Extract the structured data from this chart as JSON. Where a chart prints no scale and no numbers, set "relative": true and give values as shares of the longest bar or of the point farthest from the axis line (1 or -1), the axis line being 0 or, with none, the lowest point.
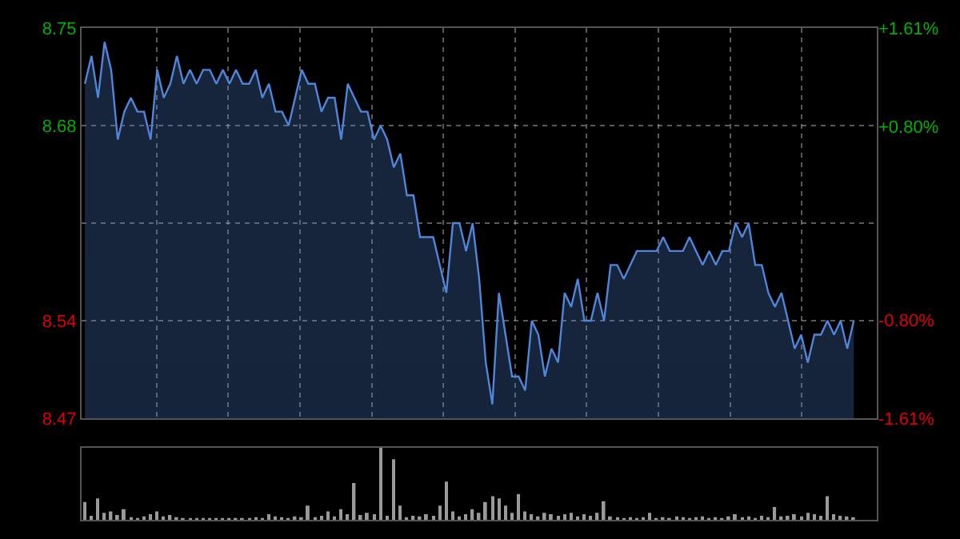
{
  "chart_data": [
    {
      "type": "area",
      "categories": [
        null,
        null,
        null,
        null,
        null,
        null,
        null,
        null,
        null,
        null,
        null,
        null,
        null,
        null,
        null,
        null,
        null,
        null,
        null,
        null,
        null,
        null,
        null,
        null,
        null,
        null,
        null,
        null,
        null,
        null,
        null,
        null,
        null,
        null,
        null,
        null,
        null,
        null,
        null,
        null,
        null,
        null,
        null,
        null,
        null,
        null,
        null,
        null,
        null,
        null,
        null,
        null,
        null,
        null,
        null,
        null,
        null,
        null,
        null,
        null,
        null,
        null,
        null,
        null,
        null,
        null,
        null,
        null,
        null,
        null,
        null,
        null,
        null,
        null,
        null,
        null,
        null,
        null,
        null,
        null,
        null,
        null,
        null,
        null,
        null,
        null,
        null,
        null,
        null,
        null,
        null,
        null,
        null,
        null,
        null,
        null,
        null,
        null,
        null,
        null,
        null,
        null,
        null,
        null,
        null,
        null,
        null,
        null,
        null,
        null,
        null,
        null,
        null,
        null,
        null,
        null,
        null,
        null,
        null,
        null,
        null
      ],
      "series": [
        {
          "color": "#4f86d9",
          "values": [
            8.71,
            8.73,
            8.7,
            8.74,
            8.72,
            8.67,
            8.69,
            8.7,
            8.69,
            8.69,
            8.67,
            8.72,
            8.7,
            8.71,
            8.73,
            8.71,
            8.72,
            8.71,
            8.72,
            8.72,
            8.71,
            8.72,
            8.71,
            8.72,
            8.71,
            8.71,
            8.72,
            8.7,
            8.71,
            8.69,
            8.69,
            8.68,
            8.7,
            8.72,
            8.71,
            8.71,
            8.69,
            8.7,
            8.7,
            8.67,
            8.71,
            8.7,
            8.69,
            8.69,
            8.67,
            8.68,
            8.67,
            8.65,
            8.66,
            8.63,
            8.63,
            8.6,
            8.6,
            8.6,
            8.58,
            8.56,
            8.61,
            8.61,
            8.59,
            8.61,
            8.57,
            8.51,
            8.48,
            8.56,
            8.53,
            8.5,
            8.5,
            8.49,
            8.54,
            8.53,
            8.5,
            8.52,
            8.51,
            8.56,
            8.55,
            8.57,
            8.54,
            8.54,
            8.56,
            8.54,
            8.58,
            8.58,
            8.57,
            8.58,
            8.59,
            8.59,
            8.59,
            8.59,
            8.6,
            8.59,
            8.59,
            8.59,
            8.6,
            8.59,
            8.58,
            8.59,
            8.58,
            8.59,
            8.59,
            8.61,
            8.6,
            8.61,
            8.58,
            8.58,
            8.56,
            8.55,
            8.56,
            8.54,
            8.52,
            8.53,
            8.51,
            8.53,
            8.53,
            8.54,
            8.53,
            8.54,
            8.52,
            8.54,
            null,
            null,
            null
          ]
        }
      ],
      "ylim": [
        8.47,
        8.75
      ],
      "yticks": [
        8.47,
        8.54,
        {
          "value": 8.61,
          "label": null
        },
        8.68,
        8.75
      ],
      "y2lim": [
        -1.61,
        1.61
      ],
      "y2ticks": [
        {
          "value": 1.61,
          "label": "+1.61%"
        },
        {
          "value": 0.8,
          "label": "+0.80%"
        },
        {
          "value": 0,
          "label": null
        },
        {
          "value": -0.8,
          "label": "-0.80%"
        },
        {
          "value": -1.61,
          "label": "-1.61%"
        }
      ],
      "grid": true
    },
    {
      "type": "bar",
      "relative": true,
      "categories": [
        null,
        null,
        null,
        null,
        null,
        null,
        null,
        null,
        null,
        null,
        null,
        null,
        null,
        null,
        null,
        null,
        null,
        null,
        null,
        null,
        null,
        null,
        null,
        null,
        null,
        null,
        null,
        null,
        null,
        null,
        null,
        null,
        null,
        null,
        null,
        null,
        null,
        null,
        null,
        null,
        null,
        null,
        null,
        null,
        null,
        null,
        null,
        null,
        null,
        null,
        null,
        null,
        null,
        null,
        null,
        null,
        null,
        null,
        null,
        null,
        null,
        null,
        null,
        null,
        null,
        null,
        null,
        null,
        null,
        null,
        null,
        null,
        null,
        null,
        null,
        null,
        null,
        null,
        null,
        null,
        null,
        null,
        null,
        null,
        null,
        null,
        null,
        null,
        null,
        null,
        null,
        null,
        null,
        null,
        null,
        null,
        null,
        null,
        null,
        null,
        null,
        null,
        null,
        null,
        null,
        null,
        null,
        null,
        null,
        null,
        null,
        null,
        null,
        null,
        null,
        null,
        null,
        null,
        null,
        null,
        null
      ],
      "series": [
        {
          "color": "#9a9a9a",
          "values": [
            0.25,
            0.06,
            0.3,
            0.1,
            0.12,
            0.07,
            0.15,
            0.04,
            0.03,
            0.05,
            0.08,
            0.12,
            0.05,
            0.07,
            0.04,
            0.03,
            0.02,
            0.02,
            0.03,
            0.02,
            0.02,
            0.03,
            0.02,
            0.03,
            0.02,
            0.03,
            0.04,
            0.03,
            0.08,
            0.05,
            0.04,
            0.03,
            0.05,
            0.04,
            0.2,
            0.04,
            0.06,
            0.12,
            0.05,
            0.15,
            0.08,
            0.51,
            0.07,
            0.1,
            0.08,
            1,
            0.06,
            0.84,
            0.2,
            0.04,
            0.06,
            0.05,
            0.08,
            0.06,
            0.2,
            0.53,
            0.12,
            0.05,
            0.08,
            0.15,
            0.1,
            0.25,
            0.33,
            0.3,
            0.2,
            0.1,
            0.36,
            0.12,
            0.08,
            0.05,
            0.1,
            0.08,
            0.06,
            0.08,
            0.1,
            0.05,
            0.08,
            0.06,
            0.1,
            0.26,
            0.05,
            0.04,
            0.03,
            0.04,
            0.03,
            0.04,
            0.1,
            0.03,
            0.04,
            0.03,
            0.05,
            0.04,
            0.03,
            0.04,
            0.05,
            0.03,
            0.04,
            0.03,
            0.05,
            0.08,
            0.04,
            0.05,
            0.03,
            0.06,
            0.04,
            0.18,
            0.05,
            0.06,
            0.08,
            0.05,
            0.1,
            0.08,
            0.06,
            0.33,
            0.08,
            0.06,
            0.05,
            0.04,
            null,
            null,
            null
          ]
        }
      ]
    }
  ]
}
